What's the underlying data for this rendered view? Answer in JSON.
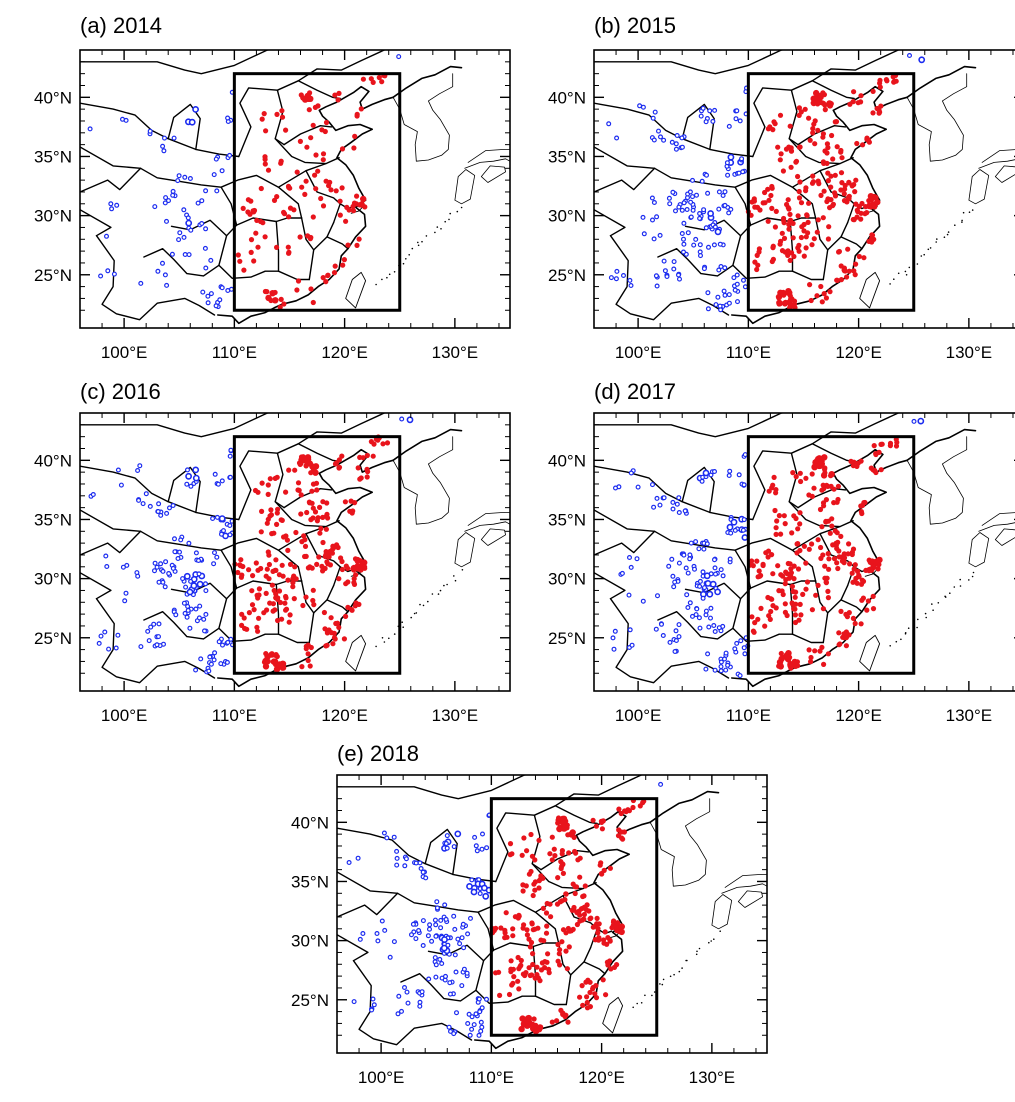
{
  "figure": {
    "panels": [
      {
        "id": "a",
        "title": "(a) 2014",
        "density": 0.45
      },
      {
        "id": "b",
        "title": "(b) 2015",
        "density": 1.0
      },
      {
        "id": "c",
        "title": "(c) 2016",
        "density": 1.0
      },
      {
        "id": "d",
        "title": "(d) 2017",
        "density": 1.0
      },
      {
        "id": "e",
        "title": "(e) 2018",
        "density": 1.0
      }
    ],
    "x_ticks": [
      {
        "value": 100,
        "label": "100°E"
      },
      {
        "value": 110,
        "label": "110°E"
      },
      {
        "value": 120,
        "label": "120°E"
      },
      {
        "value": 130,
        "label": "130°E"
      }
    ],
    "y_ticks": [
      {
        "value": 25,
        "label": "25°N"
      },
      {
        "value": 30,
        "label": "30°N"
      },
      {
        "value": 35,
        "label": "35°N"
      },
      {
        "value": 40,
        "label": "40°N"
      }
    ],
    "lon_range": [
      96,
      135
    ],
    "lat_range": [
      20.5,
      44
    ],
    "study_box": {
      "lon": [
        110,
        125
      ],
      "lat": [
        22,
        42
      ]
    },
    "colors": {
      "inside_stations": "#e8141c",
      "outside_stations": "#1c2cf0",
      "boundaries": "#000000"
    }
  }
}
